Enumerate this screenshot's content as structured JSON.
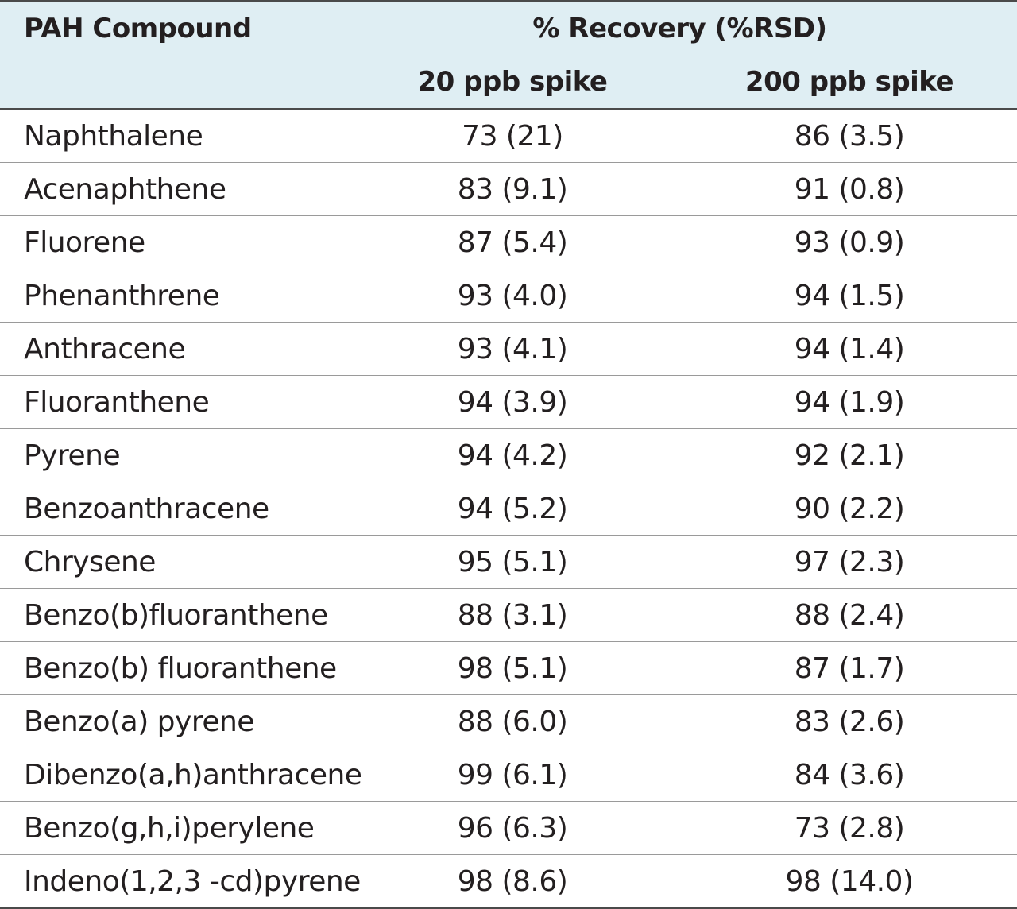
{
  "table": {
    "header": {
      "compound": "PAH Compound",
      "group": "% Recovery (%RSD)",
      "col_20": "20 ppb spike",
      "col_200": "200 ppb spike"
    },
    "rows": [
      {
        "compound": "Naphthalene",
        "spike_20": "73 (21)",
        "spike_200": "86 (3.5)"
      },
      {
        "compound": "Acenaphthene",
        "spike_20": "83 (9.1)",
        "spike_200": "91 (0.8)"
      },
      {
        "compound": "Fluorene",
        "spike_20": "87 (5.4)",
        "spike_200": "93 (0.9)"
      },
      {
        "compound": "Phenanthrene",
        "spike_20": "93 (4.0)",
        "spike_200": "94 (1.5)"
      },
      {
        "compound": "Anthracene",
        "spike_20": "93 (4.1)",
        "spike_200": "94 (1.4)"
      },
      {
        "compound": "Fluoranthene",
        "spike_20": "94 (3.9)",
        "spike_200": "94 (1.9)"
      },
      {
        "compound": "Pyrene",
        "spike_20": "94 (4.2)",
        "spike_200": "92 (2.1)"
      },
      {
        "compound": "Benzoanthracene",
        "spike_20": "94 (5.2)",
        "spike_200": "90 (2.2)"
      },
      {
        "compound": "Chrysene",
        "spike_20": "95 (5.1)",
        "spike_200": "97 (2.3)"
      },
      {
        "compound": "Benzo(b)fluoranthene",
        "spike_20": "88 (3.1)",
        "spike_200": "88 (2.4)"
      },
      {
        "compound": "Benzo(b) fluoranthene",
        "spike_20": "98 (5.1)",
        "spike_200": "87 (1.7)"
      },
      {
        "compound": "Benzo(a) pyrene",
        "spike_20": "88 (6.0)",
        "spike_200": "83 (2.6)"
      },
      {
        "compound": "Dibenzo(a,h)anthracene",
        "spike_20": "99 (6.1)",
        "spike_200": "84 (3.6)"
      },
      {
        "compound": "Benzo(g,h,i)perylene",
        "spike_20": "96 (6.3)",
        "spike_200": "73 (2.8)"
      },
      {
        "compound": "Indeno(1,2,3 -cd)pyrene",
        "spike_20": "98 (8.6)",
        "spike_200": "98 (14.0)"
      }
    ]
  }
}
